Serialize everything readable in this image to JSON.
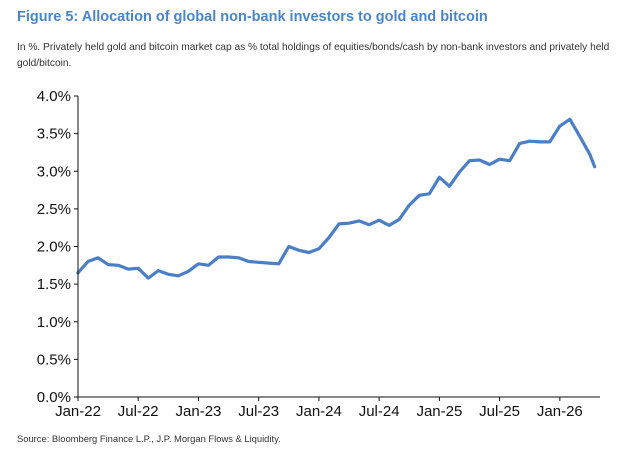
{
  "header": {
    "title": "Figure 5: Allocation of global non-bank investors to gold and bitcoin",
    "subtitle": "In %. Privately held gold and bitcoin market cap as % total holdings of equities/bonds/cash by non-bank investors and privately held gold/bitcoin."
  },
  "footer": {
    "source": "Source: Bloomberg Finance L.P., J.P. Morgan Flows & Liquidity."
  },
  "colors": {
    "title": "#4a86c7",
    "line": "#4a7ec6",
    "axis": "#111111"
  },
  "chart_data": {
    "type": "line",
    "title": "",
    "xlabel": "",
    "ylabel": "",
    "grid": false,
    "legend": "none",
    "xlim": [
      "2022-01",
      "2026-05"
    ],
    "ylim": [
      0,
      4.0
    ],
    "x_ticks": [
      "2022-01",
      "2022-07",
      "2023-01",
      "2023-07",
      "2024-01",
      "2024-07",
      "2025-01",
      "2025-07",
      "2026-01"
    ],
    "x_tick_labels": [
      "Jan-22",
      "Jul-22",
      "Jan-23",
      "Jul-23",
      "Jan-24",
      "Jul-24",
      "Jan-25",
      "Jul-25",
      "Jan-26"
    ],
    "y_ticks": [
      0,
      0.5,
      1.0,
      1.5,
      2.0,
      2.5,
      3.0,
      3.5,
      4.0
    ],
    "y_tick_labels": [
      "0.0%",
      "0.5%",
      "1.0%",
      "1.5%",
      "2.0%",
      "2.5%",
      "3.0%",
      "3.5%",
      "4.0%"
    ],
    "series": [
      {
        "x": [
          "2022-01",
          "2022-02",
          "2022-03",
          "2022-04",
          "2022-05",
          "2022-06",
          "2022-07",
          "2022-08",
          "2022-09",
          "2022-10",
          "2022-11",
          "2022-12",
          "2023-01",
          "2023-02",
          "2023-03",
          "2023-04",
          "2023-05",
          "2023-06",
          "2023-07",
          "2023-08",
          "2023-09",
          "2023-10",
          "2023-11",
          "2023-12",
          "2024-01",
          "2024-02",
          "2024-03",
          "2024-04",
          "2024-05",
          "2024-06",
          "2024-07",
          "2024-08",
          "2024-09",
          "2024-10",
          "2024-11",
          "2024-12",
          "2025-01",
          "2025-02",
          "2025-03",
          "2025-04",
          "2025-05",
          "2025-06",
          "2025-07",
          "2025-08",
          "2025-09",
          "2025-10",
          "2025-11",
          "2025-12",
          "2026-01",
          "2026-02",
          "2026-03",
          "2026-04",
          "2026-04-15"
        ],
        "values": [
          1.65,
          1.8,
          1.85,
          1.76,
          1.75,
          1.7,
          1.71,
          1.58,
          1.68,
          1.63,
          1.61,
          1.67,
          1.77,
          1.75,
          1.86,
          1.86,
          1.85,
          1.8,
          1.79,
          1.78,
          1.77,
          2.0,
          1.95,
          1.92,
          1.97,
          2.12,
          2.3,
          2.31,
          2.34,
          2.29,
          2.35,
          2.28,
          2.36,
          2.55,
          2.68,
          2.7,
          2.92,
          2.8,
          2.99,
          3.14,
          3.15,
          3.09,
          3.16,
          3.14,
          3.37,
          3.4,
          3.39,
          3.39,
          3.6,
          3.69,
          3.46,
          3.22,
          3.06
        ]
      }
    ]
  }
}
